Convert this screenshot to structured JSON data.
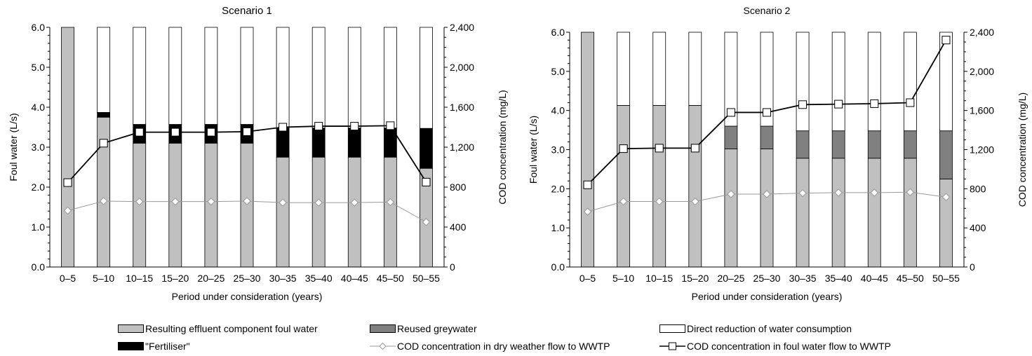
{
  "colors": {
    "effluent": "#c0c0c0",
    "greywater": "#808080",
    "fertiliser": "#000000",
    "reduction": "#ffffff",
    "cod_dry": "#999999",
    "cod_foul": "#000000"
  },
  "legend": {
    "effluent": "Resulting effluent component foul water",
    "greywater": "Reused greywater",
    "reduction": "Direct reduction of water consumption",
    "fertiliser": "\"Fertiliser\"",
    "cod_dry": "COD concentration in dry weather flow to WWTP",
    "cod_foul": "COD concentration in foul water flow to WWTP"
  },
  "chart_data": [
    {
      "type": "bar",
      "title": "Scenario 1",
      "xlabel": "Period under consideration (years)",
      "ylabel": "Foul water (L/s)",
      "y2label": "COD concentration (mg/L)",
      "ylim": [
        0,
        6
      ],
      "y2lim": [
        0,
        2400
      ],
      "yticks": [
        "0.0",
        "1.0",
        "2.0",
        "3.0",
        "4.0",
        "5.0",
        "6.0"
      ],
      "y2ticks": [
        "0",
        "400",
        "800",
        "1,200",
        "1,600",
        "2,000",
        "2,400"
      ],
      "categories": [
        "0–5",
        "5–10",
        "10–15",
        "15–20",
        "20–25",
        "25–30",
        "30–35",
        "35–40",
        "40–45",
        "45–50",
        "50–55"
      ],
      "series": [
        {
          "name": "Resulting effluent component foul water",
          "kind": "stack",
          "color_key": "effluent",
          "values": [
            6.0,
            3.75,
            3.1,
            3.1,
            3.1,
            3.1,
            2.75,
            2.75,
            2.75,
            2.75,
            2.47
          ]
        },
        {
          "name": "Reused greywater",
          "kind": "stack",
          "color_key": "greywater",
          "values": [
            0,
            0,
            0,
            0,
            0,
            0,
            0,
            0,
            0,
            0,
            0
          ]
        },
        {
          "name": "\"Fertiliser\"",
          "kind": "stack",
          "color_key": "fertiliser",
          "values": [
            0,
            0.12,
            0.47,
            0.47,
            0.47,
            0.47,
            0.73,
            0.73,
            0.73,
            0.73,
            1.0
          ]
        },
        {
          "name": "Direct reduction of water consumption",
          "kind": "stack",
          "color_key": "reduction",
          "values": [
            0,
            2.13,
            2.43,
            2.43,
            2.43,
            2.43,
            2.52,
            2.52,
            2.52,
            2.52,
            2.53
          ]
        },
        {
          "name": "COD concentration in dry weather flow to WWTP",
          "kind": "line2",
          "color_key": "cod_dry",
          "marker": "diamond",
          "values": [
            565,
            660,
            655,
            655,
            655,
            660,
            645,
            645,
            645,
            650,
            450
          ]
        },
        {
          "name": "COD concentration in foul water flow to WWTP",
          "kind": "line2",
          "color_key": "cod_foul",
          "marker": "square",
          "values": [
            845,
            1240,
            1350,
            1350,
            1350,
            1355,
            1400,
            1410,
            1410,
            1415,
            850
          ]
        }
      ]
    },
    {
      "type": "bar",
      "title": "Scenario 2",
      "xlabel": "Period under consideration (years)",
      "ylabel": "Foul water (L/s)",
      "y2label": "COD concentration (mg/L)",
      "ylim": [
        0,
        6
      ],
      "y2lim": [
        0,
        2400
      ],
      "yticks": [
        "0.0",
        "1.0",
        "2.0",
        "3.0",
        "4.0",
        "5.0",
        "6.0"
      ],
      "y2ticks": [
        "0",
        "400",
        "800",
        "1,200",
        "1,600",
        "2,000",
        "2,400"
      ],
      "categories": [
        "0–5",
        "5–10",
        "10–15",
        "15–20",
        "20–25",
        "25–30",
        "30–35",
        "35–40",
        "40–45",
        "45–50",
        "50–55"
      ],
      "series": [
        {
          "name": "Resulting effluent component foul water",
          "kind": "stack",
          "color_key": "effluent",
          "values": [
            6.0,
            4.13,
            4.13,
            4.13,
            3.02,
            3.02,
            2.78,
            2.78,
            2.78,
            2.78,
            2.25
          ]
        },
        {
          "name": "Reused greywater",
          "kind": "stack",
          "color_key": "greywater",
          "values": [
            0,
            0,
            0,
            0,
            0.58,
            0.58,
            0.7,
            0.7,
            0.7,
            0.7,
            1.23
          ]
        },
        {
          "name": "\"Fertiliser\"",
          "kind": "stack",
          "color_key": "fertiliser",
          "values": [
            0,
            0,
            0,
            0,
            0,
            0,
            0,
            0,
            0,
            0,
            0
          ]
        },
        {
          "name": "Direct reduction of water consumption",
          "kind": "stack",
          "color_key": "reduction",
          "values": [
            0,
            1.87,
            1.87,
            1.87,
            2.4,
            2.4,
            2.52,
            2.52,
            2.52,
            2.52,
            2.52
          ]
        },
        {
          "name": "COD concentration in dry weather flow to WWTP",
          "kind": "line2",
          "color_key": "cod_dry",
          "marker": "diamond",
          "values": [
            565,
            670,
            670,
            670,
            745,
            745,
            755,
            760,
            760,
            765,
            715
          ]
        },
        {
          "name": "COD concentration in foul water flow to WWTP",
          "kind": "line2",
          "color_key": "cod_foul",
          "marker": "square",
          "values": [
            840,
            1210,
            1215,
            1215,
            1580,
            1580,
            1660,
            1665,
            1670,
            1680,
            2320
          ]
        }
      ]
    }
  ]
}
